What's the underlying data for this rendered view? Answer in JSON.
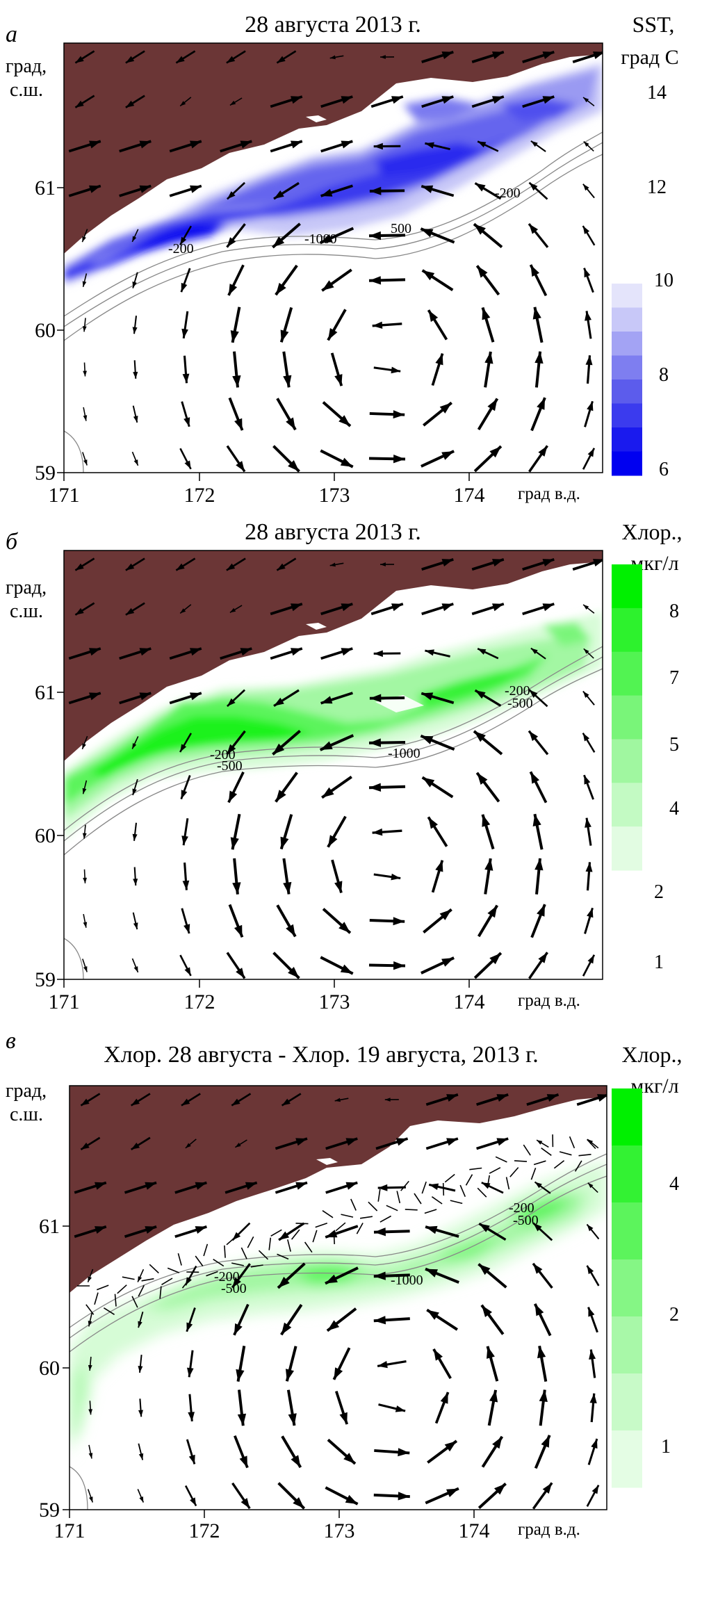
{
  "panels": [
    {
      "letter": "а",
      "title": "28 августа  2013 г.",
      "ylabel": [
        "град,",
        "с.ш."
      ],
      "xlabel": "град в.д.",
      "xticks": [
        "171",
        "172",
        "173",
        "174"
      ],
      "yticks": [
        "61",
        "60",
        "59"
      ],
      "contours": [
        "-200",
        "-1000",
        "500",
        "-200"
      ],
      "legend": {
        "title": [
          "SST,",
          "град С"
        ],
        "values": [
          "14",
          "12",
          "10",
          "8",
          "6"
        ],
        "colors": [
          "#0000f0",
          "#1a1aee",
          "#3b3bee",
          "#5c5cec",
          "#7e7ef0",
          "#a3a3f4",
          "#c8c8f8",
          "#e4e4fb"
        ]
      }
    },
    {
      "letter": "б",
      "title": "28 августа  2013 г.",
      "ylabel": [
        "град,",
        "с.ш."
      ],
      "xlabel": "град в.д.",
      "xticks": [
        "171",
        "172",
        "173",
        "174"
      ],
      "yticks": [
        "61",
        "60",
        "59"
      ],
      "contours": [
        "-200",
        "-500",
        "-1000",
        "-200",
        "-500"
      ],
      "legend": {
        "title": [
          "Хлор.,",
          "мкг/л"
        ],
        "values": [
          "8",
          "7",
          "5",
          "4",
          "2",
          "1"
        ],
        "colors": [
          "#00f000",
          "#2df22d",
          "#52f352",
          "#79f579",
          "#a0f7a0",
          "#c3fac3",
          "#e2fce2"
        ]
      }
    },
    {
      "letter": "в",
      "title": "Хлор. 28 августа - Хлор. 19 августа, 2013 г.",
      "ylabel": [
        "град,",
        "с.ш."
      ],
      "xlabel": "град в.д.",
      "xticks": [
        "171",
        "172",
        "173",
        "174"
      ],
      "yticks": [
        "61",
        "60",
        "59"
      ],
      "contours": [
        "-200",
        "-500",
        "-1000",
        "-200",
        "-500"
      ],
      "legend": {
        "title": [
          "Хлор.,",
          "мкг/л"
        ],
        "values": [
          "4",
          "2",
          "1"
        ],
        "colors": [
          "#00f000",
          "#33f233",
          "#5cf45c",
          "#85f685",
          "#a8f8a8",
          "#c8fac8",
          "#e4fde4"
        ]
      }
    }
  ],
  "colors": {
    "land": "#6b3636",
    "sst_blue": "#2222ee",
    "chl_green": "#22ee22"
  }
}
